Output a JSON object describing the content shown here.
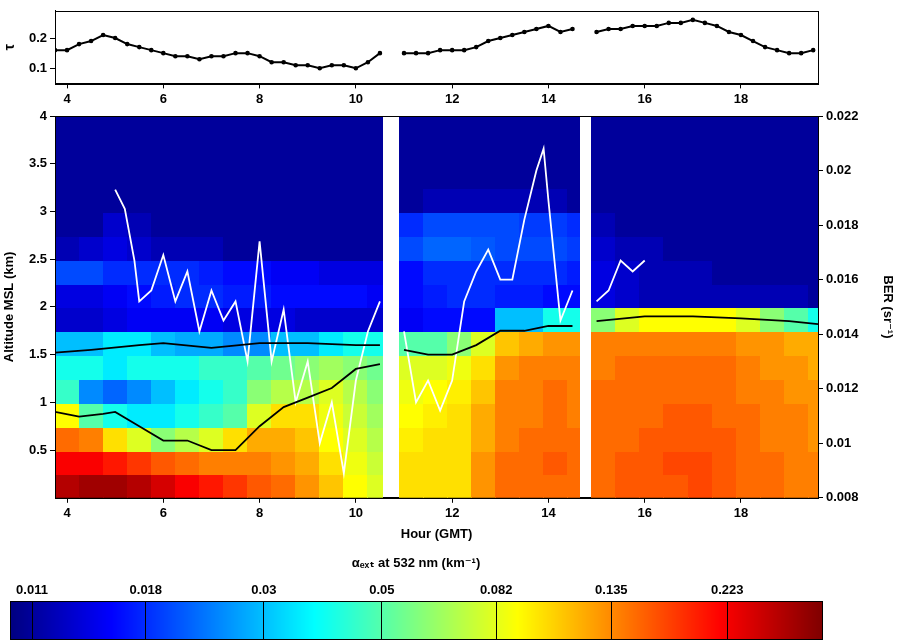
{
  "chart_data": [
    {
      "type": "line",
      "ylabel": "τ",
      "color": "#000000",
      "marker": "circle",
      "line_style": "solid",
      "grid": false,
      "xlim": [
        3.75,
        19.6
      ],
      "xticks": [
        4,
        6,
        8,
        10,
        12,
        14,
        16,
        18
      ],
      "ylim": [
        0.05,
        0.29
      ],
      "yticks": [
        0.1,
        0.2
      ],
      "x": [
        3.75,
        4,
        4.25,
        4.5,
        4.75,
        5,
        5.25,
        5.5,
        5.75,
        6,
        6.25,
        6.5,
        6.75,
        7,
        7.25,
        7.5,
        7.75,
        8,
        8.25,
        8.5,
        8.75,
        9,
        9.25,
        9.5,
        9.75,
        10,
        10.25,
        10.5,
        10.75,
        11,
        11.25,
        11.5,
        11.75,
        12,
        12.25,
        12.5,
        12.75,
        13,
        13.25,
        13.5,
        13.75,
        14,
        14.25,
        14.5,
        14.75,
        15,
        15.25,
        15.5,
        15.75,
        16,
        16.25,
        16.5,
        16.75,
        17,
        17.25,
        17.5,
        17.75,
        18,
        18.25,
        18.5,
        18.75,
        19,
        19.25,
        19.5
      ],
      "values": [
        0.16,
        0.16,
        0.18,
        0.19,
        0.21,
        0.2,
        0.18,
        0.17,
        0.16,
        0.15,
        0.14,
        0.14,
        0.13,
        0.14,
        0.14,
        0.15,
        0.15,
        0.14,
        0.12,
        0.12,
        0.11,
        0.11,
        0.1,
        0.11,
        0.11,
        0.1,
        0.12,
        0.15,
        null,
        0.15,
        0.15,
        0.15,
        0.16,
        0.16,
        0.16,
        0.17,
        0.19,
        0.2,
        0.21,
        0.22,
        0.23,
        0.24,
        0.22,
        0.23,
        null,
        0.22,
        0.23,
        0.23,
        0.24,
        0.24,
        0.24,
        0.25,
        0.25,
        0.26,
        0.25,
        0.24,
        0.22,
        0.21,
        0.19,
        0.17,
        0.16,
        0.15,
        0.15,
        0.16
      ]
    },
    {
      "type": "heatmap",
      "xlabel": "Hour (GMT)",
      "ylabel": "Altitude MSL (km)",
      "y2label": "BER (sr⁻¹)",
      "grid": false,
      "xlim": [
        3.75,
        19.6
      ],
      "xticks": [
        4,
        6,
        8,
        10,
        12,
        14,
        16,
        18
      ],
      "ylim": [
        0,
        4
      ],
      "yticks": [
        0.5,
        1,
        1.5,
        2,
        2.5,
        3,
        3.5,
        4
      ],
      "y2lim": [
        0.008,
        0.022
      ],
      "y2ticks": [
        0.008,
        0.01,
        0.012,
        0.014,
        0.016,
        0.018,
        0.02,
        0.022
      ],
      "cells": {
        "x_edges": [
          3.75,
          4.25,
          4.75,
          5.25,
          5.75,
          6.25,
          6.75,
          7.25,
          7.75,
          8.25,
          8.75,
          9.25,
          9.75,
          10.25,
          10.55,
          10.9,
          11.4,
          11.9,
          12.4,
          12.9,
          13.4,
          13.9,
          14.4,
          14.65,
          14.9,
          15.4,
          15.9,
          16.4,
          16.9,
          17.4,
          17.9,
          18.4,
          18.9,
          19.4,
          19.9
        ],
        "y_edges": [
          0,
          0.25,
          0.5,
          0.75,
          1,
          1.25,
          1.5,
          1.75,
          2,
          2.25,
          2.5,
          2.75,
          3,
          3.25,
          3.5,
          3.75,
          4
        ],
        "values": [
          [
            0.28,
            0.22,
            0.15,
            0.09,
            0.045,
            0.04,
            0.03,
            0.013,
            0.014,
            0.02,
            0.012,
            0.011,
            0.011,
            0.011,
            0.011,
            0.011
          ],
          [
            0.3,
            0.22,
            0.14,
            0.05,
            0.025,
            0.04,
            0.03,
            0.013,
            0.014,
            0.02,
            0.013,
            0.011,
            0.011,
            0.011,
            0.011,
            0.011
          ],
          [
            0.3,
            0.2,
            0.1,
            0.04,
            0.022,
            0.035,
            0.035,
            0.014,
            0.015,
            0.018,
            0.014,
            0.013,
            0.011,
            0.011,
            0.011,
            0.011
          ],
          [
            0.28,
            0.18,
            0.08,
            0.035,
            0.025,
            0.04,
            0.035,
            0.015,
            0.016,
            0.018,
            0.013,
            0.012,
            0.011,
            0.011,
            0.011,
            0.011
          ],
          [
            0.25,
            0.16,
            0.06,
            0.035,
            0.03,
            0.04,
            0.03,
            0.015,
            0.017,
            0.018,
            0.012,
            0.011,
            0.011,
            0.011,
            0.011,
            0.011
          ],
          [
            0.22,
            0.15,
            0.07,
            0.04,
            0.035,
            0.04,
            0.028,
            0.015,
            0.018,
            0.018,
            0.012,
            0.011,
            0.011,
            0.011,
            0.011,
            0.011
          ],
          [
            0.2,
            0.14,
            0.08,
            0.045,
            0.04,
            0.045,
            0.028,
            0.015,
            0.018,
            0.017,
            0.012,
            0.011,
            0.011,
            0.011,
            0.011,
            0.011
          ],
          [
            0.18,
            0.14,
            0.1,
            0.05,
            0.045,
            0.045,
            0.025,
            0.014,
            0.017,
            0.016,
            0.011,
            0.011,
            0.011,
            0.011,
            0.011,
            0.011
          ],
          [
            0.16,
            0.14,
            0.12,
            0.08,
            0.06,
            0.05,
            0.025,
            0.014,
            0.017,
            0.016,
            0.011,
            0.011,
            0.011,
            0.011,
            0.011,
            0.011
          ],
          [
            0.15,
            0.13,
            0.12,
            0.1,
            0.07,
            0.055,
            0.03,
            0.014,
            0.016,
            0.015,
            0.011,
            0.011,
            0.011,
            0.011,
            0.011,
            0.011
          ],
          [
            0.13,
            0.12,
            0.11,
            0.1,
            0.07,
            0.06,
            0.03,
            0.013,
            0.016,
            0.015,
            0.011,
            0.011,
            0.011,
            0.011,
            0.011,
            0.011
          ],
          [
            0.11,
            0.1,
            0.09,
            0.085,
            0.08,
            0.065,
            0.035,
            0.013,
            0.016,
            0.014,
            0.011,
            0.011,
            0.011,
            0.011,
            0.011,
            0.011
          ],
          [
            0.09,
            0.085,
            0.08,
            0.075,
            0.07,
            0.06,
            0.04,
            0.013,
            0.016,
            0.014,
            0.011,
            0.011,
            0.011,
            0.011,
            0.011,
            0.011
          ],
          [
            0.08,
            0.075,
            0.07,
            0.065,
            0.06,
            0.055,
            0.04,
            0.013,
            0.015,
            0.014,
            0.011,
            0.011,
            0.011,
            0.011,
            0.011,
            0.011
          ],
          null,
          [
            0.1,
            0.1,
            0.095,
            0.09,
            0.085,
            0.08,
            0.05,
            0.015,
            0.016,
            0.016,
            0.02,
            0.018,
            0.011,
            0.011,
            0.011,
            0.011
          ],
          [
            0.1,
            0.1,
            0.1,
            0.095,
            0.09,
            0.08,
            0.05,
            0.016,
            0.017,
            0.018,
            0.022,
            0.02,
            0.012,
            0.011,
            0.011,
            0.011
          ],
          [
            0.1,
            0.1,
            0.1,
            0.1,
            0.095,
            0.085,
            0.06,
            0.016,
            0.018,
            0.018,
            0.022,
            0.02,
            0.012,
            0.011,
            0.011,
            0.011
          ],
          [
            0.13,
            0.13,
            0.12,
            0.12,
            0.11,
            0.1,
            0.08,
            0.016,
            0.018,
            0.018,
            0.021,
            0.02,
            0.012,
            0.011,
            0.011,
            0.011
          ],
          [
            0.15,
            0.15,
            0.14,
            0.14,
            0.14,
            0.13,
            0.11,
            0.03,
            0.017,
            0.018,
            0.02,
            0.02,
            0.012,
            0.011,
            0.011,
            0.011
          ],
          [
            0.15,
            0.15,
            0.15,
            0.14,
            0.14,
            0.14,
            0.12,
            0.03,
            0.017,
            0.018,
            0.02,
            0.019,
            0.012,
            0.011,
            0.011,
            0.011
          ],
          [
            0.15,
            0.16,
            0.15,
            0.15,
            0.15,
            0.14,
            0.13,
            0.04,
            0.016,
            0.018,
            0.02,
            0.019,
            0.012,
            0.011,
            0.011,
            0.011
          ],
          [
            0.15,
            0.15,
            0.15,
            0.14,
            0.14,
            0.14,
            0.13,
            0.04,
            0.016,
            0.017,
            0.019,
            0.018,
            0.011,
            0.011,
            0.011,
            0.011
          ],
          null,
          [
            0.15,
            0.15,
            0.15,
            0.15,
            0.15,
            0.14,
            0.14,
            0.06,
            0.014,
            0.014,
            0.013,
            0.012,
            0.011,
            0.011,
            0.011,
            0.011
          ],
          [
            0.16,
            0.16,
            0.15,
            0.15,
            0.15,
            0.15,
            0.14,
            0.08,
            0.013,
            0.013,
            0.012,
            0.011,
            0.011,
            0.011,
            0.011,
            0.011
          ],
          [
            0.16,
            0.16,
            0.16,
            0.15,
            0.15,
            0.15,
            0.14,
            0.09,
            0.012,
            0.012,
            0.012,
            0.011,
            0.011,
            0.011,
            0.011,
            0.011
          ],
          [
            0.16,
            0.17,
            0.16,
            0.16,
            0.15,
            0.15,
            0.14,
            0.09,
            0.012,
            0.012,
            0.011,
            0.011,
            0.011,
            0.011,
            0.011,
            0.011
          ],
          [
            0.17,
            0.17,
            0.16,
            0.16,
            0.15,
            0.15,
            0.14,
            0.09,
            0.012,
            0.012,
            0.011,
            0.011,
            0.011,
            0.011,
            0.011,
            0.011
          ],
          [
            0.16,
            0.16,
            0.16,
            0.15,
            0.15,
            0.15,
            0.14,
            0.09,
            0.012,
            0.011,
            0.011,
            0.011,
            0.011,
            0.011,
            0.011,
            0.011
          ],
          [
            0.15,
            0.15,
            0.15,
            0.15,
            0.14,
            0.14,
            0.13,
            0.08,
            0.012,
            0.011,
            0.011,
            0.011,
            0.011,
            0.011,
            0.011,
            0.011
          ],
          [
            0.15,
            0.15,
            0.14,
            0.14,
            0.14,
            0.13,
            0.13,
            0.06,
            0.012,
            0.011,
            0.011,
            0.011,
            0.011,
            0.011,
            0.011,
            0.011
          ],
          [
            0.14,
            0.14,
            0.14,
            0.14,
            0.13,
            0.13,
            0.12,
            0.05,
            0.012,
            0.011,
            0.011,
            0.011,
            0.011,
            0.011,
            0.011,
            0.011
          ],
          [
            0.14,
            0.14,
            0.13,
            0.13,
            0.13,
            0.12,
            0.12,
            0.04,
            0.011,
            0.011,
            0.011,
            0.011,
            0.011,
            0.011,
            0.011,
            0.011
          ]
        ]
      },
      "colorbar": {
        "label": "αₑₓₜ at 532 nm (km⁻¹)",
        "lim": [
          0.01,
          0.336
        ],
        "ticks": [
          0.011,
          0.018,
          0.03,
          0.05,
          0.082,
          0.135,
          0.223
        ],
        "log": true
      },
      "series": [
        {
          "type": "line",
          "color": "#000000",
          "x": [
            3.75,
            4.5,
            5.5,
            6,
            7,
            8,
            9,
            10,
            10.5,
            10.7,
            11,
            11.5,
            12,
            12.5,
            13,
            13.5,
            14,
            14.5,
            14.75,
            15,
            16,
            17,
            18,
            19,
            19.6
          ],
          "values": [
            1.52,
            1.55,
            1.6,
            1.62,
            1.57,
            1.62,
            1.62,
            1.6,
            1.6,
            null,
            1.55,
            1.5,
            1.5,
            1.6,
            1.75,
            1.75,
            1.8,
            1.8,
            null,
            1.85,
            1.9,
            1.9,
            1.88,
            1.85,
            1.82
          ]
        },
        {
          "type": "line",
          "color": "#000000",
          "x": [
            3.75,
            4.25,
            4.75,
            5,
            5.5,
            6,
            6.5,
            7,
            7.5,
            8,
            8.5,
            9,
            9.5,
            10,
            10.5
          ],
          "values": [
            0.9,
            0.85,
            0.88,
            0.9,
            0.75,
            0.6,
            0.6,
            0.5,
            0.5,
            0.75,
            0.95,
            1.05,
            1.15,
            1.35,
            1.4
          ]
        },
        {
          "type": "line",
          "color": "#ffffff",
          "axis": "y2",
          "x": [
            5.0,
            5.2,
            5.4,
            5.5,
            5.75,
            6,
            6.25,
            6.5,
            6.75,
            7,
            7.25,
            7.5,
            7.75,
            8,
            8.25,
            8.5,
            8.75,
            9,
            9.25,
            9.5,
            9.75,
            10,
            10.25,
            10.5,
            10.75,
            11,
            11.25,
            11.5,
            11.75,
            12,
            12.25,
            12.5,
            12.75,
            13,
            13.25,
            13.5,
            13.75,
            13.9,
            14,
            14.25,
            14.5,
            14.75,
            15,
            15.25,
            15.5,
            15.75,
            16
          ],
          "values": [
            0.0193,
            0.0186,
            0.0167,
            0.0152,
            0.0156,
            0.0169,
            0.0152,
            0.0163,
            0.0141,
            0.0156,
            0.0145,
            0.0152,
            0.013,
            0.0174,
            0.013,
            0.0149,
            0.0115,
            0.013,
            0.01,
            0.0115,
            0.0089,
            0.0123,
            0.0141,
            0.0152,
            null,
            0.0141,
            0.0115,
            0.0123,
            0.0112,
            0.0123,
            0.0152,
            0.0163,
            0.0171,
            0.016,
            0.016,
            0.0182,
            0.02,
            0.0208,
            0.0189,
            0.0145,
            0.0156,
            null,
            0.0152,
            0.0156,
            0.0167,
            0.0163,
            0.0167
          ]
        }
      ]
    }
  ]
}
